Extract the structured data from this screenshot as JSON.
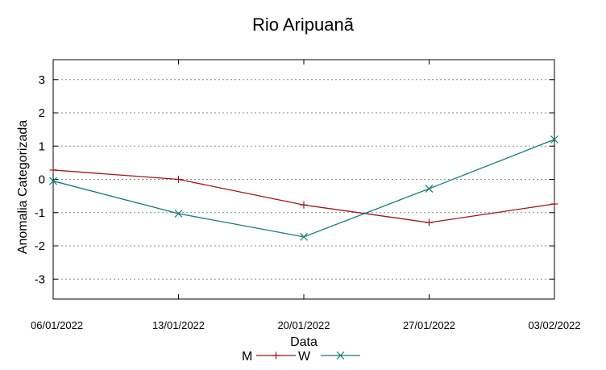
{
  "chart_data": {
    "type": "line",
    "title": "Rio Aripuanã",
    "xlabel": "Data",
    "ylabel": "Anomalia Categorizada",
    "categories": [
      "06/01/2022",
      "13/01/2022",
      "20/01/2022",
      "27/01/2022",
      "03/02/2022"
    ],
    "yticks": [
      "3",
      "2",
      "1",
      "0",
      "-1",
      "-2",
      "-3"
    ],
    "ylim": [
      -3.6,
      3.6
    ],
    "grid": true,
    "legend_position": "bottom",
    "series": [
      {
        "name": "M",
        "values": [
          0.28,
          0.0,
          -0.77,
          -1.3,
          -0.74
        ],
        "color": "#a0141e",
        "marker": "plus"
      },
      {
        "name": "W",
        "values": [
          -0.05,
          -1.03,
          -1.73,
          -0.28,
          1.2
        ],
        "color": "#0e7c7c",
        "marker": "cross"
      }
    ]
  }
}
